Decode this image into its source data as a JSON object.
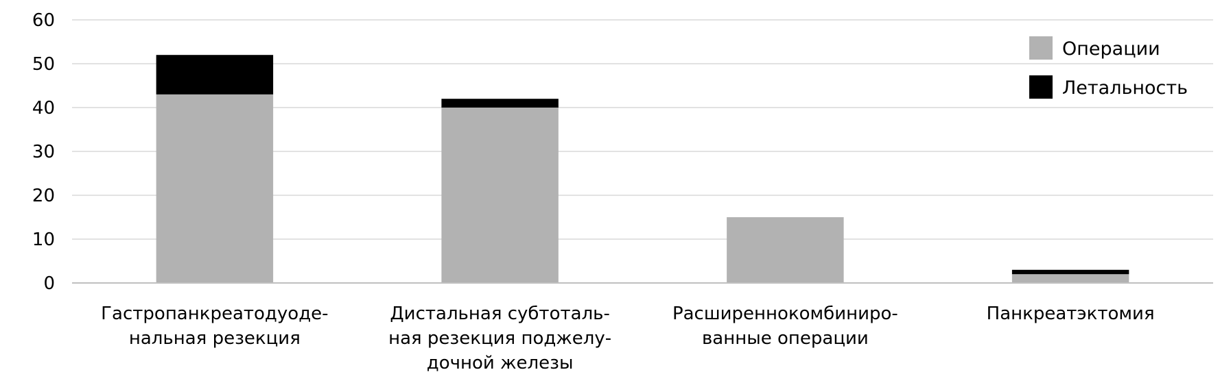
{
  "chart_data": {
    "type": "bar",
    "stacked": true,
    "title": "",
    "xlabel": "",
    "ylabel": "",
    "ylim": [
      0,
      60
    ],
    "yticks": [
      "0",
      "10",
      "20",
      "30",
      "40",
      "50",
      "60"
    ],
    "grid": true,
    "legend_position": "top-right",
    "categories": [
      [
        "Гастропанкреатодуоде-",
        "нальная резекция"
      ],
      [
        "Дистальная субтоталь-",
        "ная резекция поджелу-",
        "дочной железы"
      ],
      [
        "Расширеннокомбиниро-",
        "ванные операции"
      ],
      [
        "Панкреатэктомия"
      ]
    ],
    "series": [
      {
        "name": "Операции",
        "color": "#b2b2b2",
        "values": [
          43,
          40,
          15,
          2
        ]
      },
      {
        "name": "Летальность",
        "color": "#000000",
        "values": [
          9,
          2,
          0,
          1
        ]
      }
    ],
    "colors": {
      "grid": "#d9d9d9",
      "axis": "#bfbfbf"
    }
  }
}
